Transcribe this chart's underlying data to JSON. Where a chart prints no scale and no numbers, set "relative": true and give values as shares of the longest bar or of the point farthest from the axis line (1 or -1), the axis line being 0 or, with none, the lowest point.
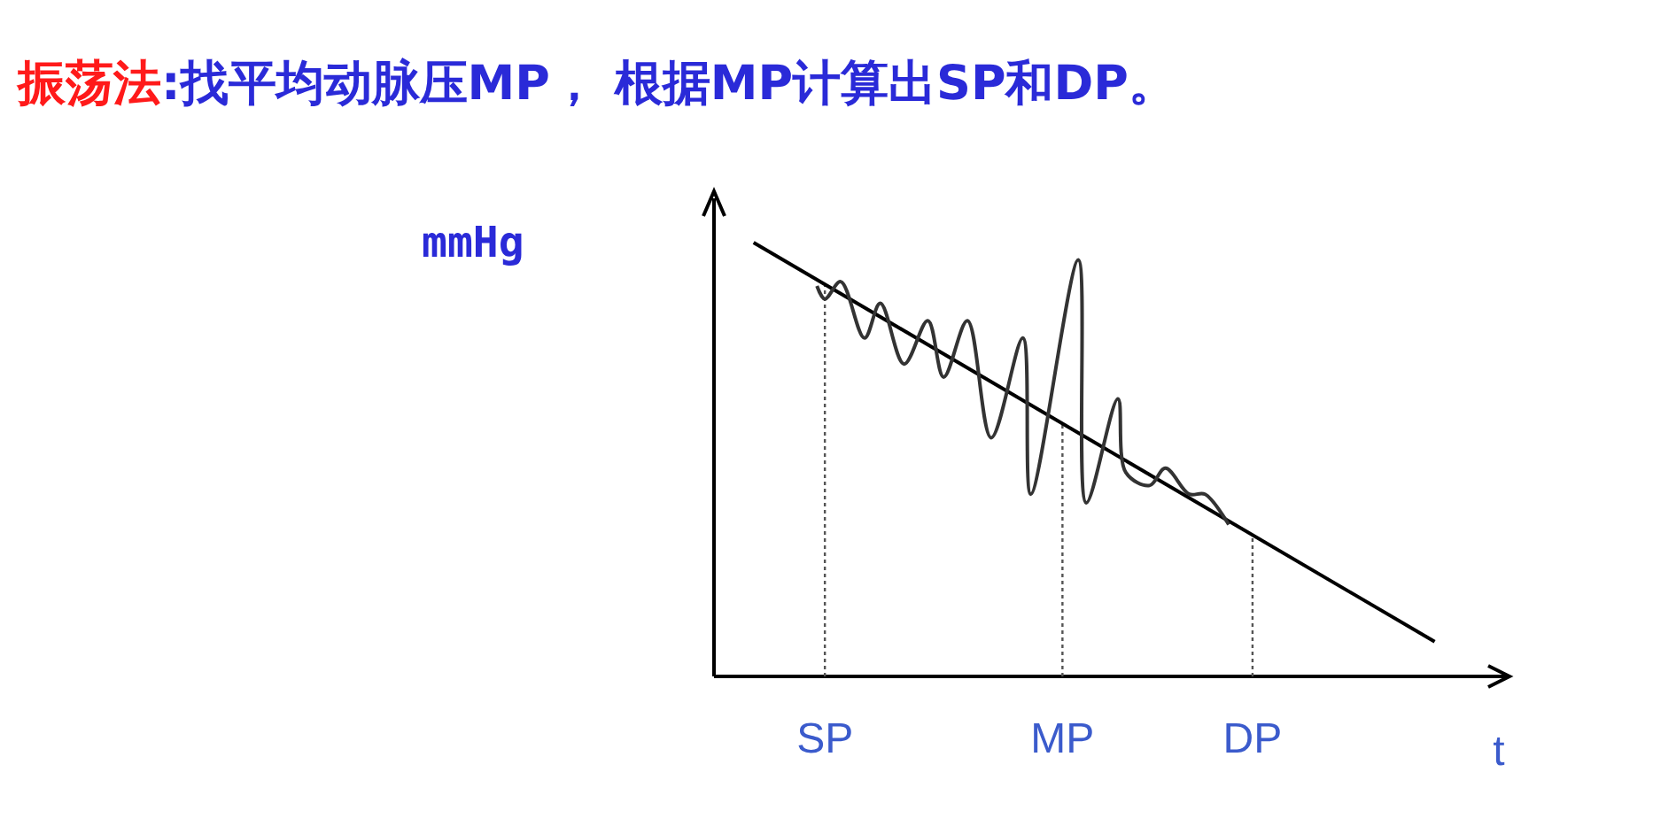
{
  "chart_data": {
    "type": "line",
    "title": "振荡法:找平均动脉压MP， 根据MP计算出SP和DP。",
    "xlabel": "t",
    "ylabel": "mmHg",
    "relative": true,
    "categories": [
      null,
      null,
      null,
      null,
      null,
      null,
      null,
      null,
      null,
      null,
      null,
      null,
      null,
      null,
      "SP",
      null,
      null,
      null,
      null,
      null,
      null,
      null,
      null,
      null,
      null,
      null,
      null,
      null,
      null,
      null,
      null,
      null,
      null,
      null,
      null,
      null,
      null,
      null,
      null,
      null,
      null,
      null,
      null,
      null,
      "MP",
      null,
      null,
      null,
      null,
      null,
      null,
      null,
      null,
      null,
      null,
      null,
      null,
      null,
      null,
      null,
      null,
      null,
      null,
      null,
      null,
      null,
      null,
      null,
      "DP",
      null,
      null,
      null,
      null,
      null,
      null,
      null,
      null,
      null,
      null,
      null,
      null,
      null,
      null,
      null,
      null,
      null,
      null,
      null,
      null,
      null,
      null,
      null,
      null,
      null,
      null,
      null,
      null,
      null,
      null,
      null,
      null
    ],
    "ref_lines": [
      {
        "axis": "x",
        "value": "SP",
        "line_style": "dotted"
      },
      {
        "axis": "x",
        "value": "MP",
        "line_style": "dotted"
      },
      {
        "axis": "x",
        "value": "DP",
        "line_style": "dotted"
      }
    ],
    "series": [
      {
        "color": "#000000",
        "values": [
          null,
          null,
          null,
          null,
          null,
          1.0,
          null,
          null,
          null,
          null,
          null,
          null,
          null,
          null,
          null,
          null,
          null,
          null,
          null,
          null,
          null,
          null,
          null,
          null,
          null,
          null,
          null,
          null,
          null,
          null,
          null,
          null,
          null,
          null,
          null,
          null,
          null,
          null,
          null,
          null,
          null,
          null,
          null,
          null,
          null,
          null,
          null,
          null,
          null,
          null,
          null,
          null,
          null,
          null,
          null,
          null,
          null,
          null,
          null,
          null,
          null,
          null,
          null,
          null,
          null,
          null,
          null,
          null,
          null,
          null,
          null,
          null,
          null,
          null,
          null,
          null,
          null,
          null,
          null,
          null,
          null,
          null,
          null,
          null,
          null,
          null,
          null,
          null,
          null,
          null,
          null,
          0.08,
          null,
          null,
          null,
          null,
          null,
          null,
          null,
          null,
          null
        ]
      },
      {
        "color": "#333333",
        "values": [
          null,
          null,
          null,
          null,
          null,
          null,
          null,
          null,
          null,
          null,
          null,
          null,
          null,
          0.9,
          0.87,
          null,
          0.91,
          null,
          null,
          0.78,
          null,
          0.86,
          null,
          null,
          0.72,
          null,
          null,
          0.82,
          null,
          0.69,
          null,
          null,
          0.82,
          null,
          null,
          0.55,
          null,
          null,
          null,
          0.78,
          0.42,
          null,
          null,
          null,
          null,
          null,
          0.96,
          0.4,
          null,
          null,
          null,
          0.64,
          0.47,
          null,
          null,
          0.44,
          null,
          0.48,
          null,
          null,
          0.42,
          null,
          0.42,
          null,
          null,
          0.35,
          null,
          null,
          null,
          null,
          null,
          null,
          null,
          null,
          null,
          null,
          null,
          null,
          null,
          null,
          null,
          null,
          null,
          null,
          null,
          null,
          null,
          null,
          null,
          null,
          null,
          null,
          null,
          null,
          null,
          null,
          null,
          null,
          null,
          null,
          null
        ]
      }
    ],
    "line_style": "solid",
    "marker": "none",
    "grid": false
  }
}
